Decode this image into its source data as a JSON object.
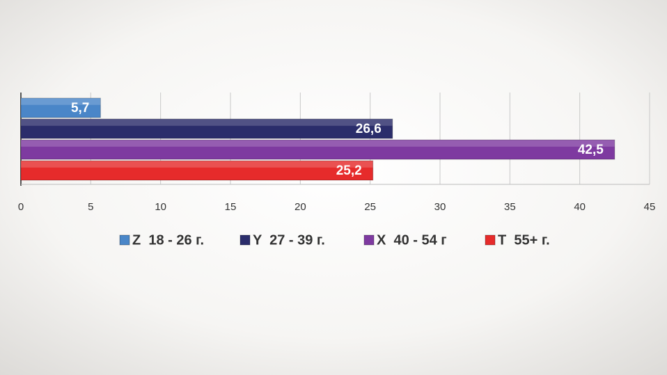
{
  "chart_data": {
    "type": "bar",
    "orientation": "horizontal",
    "categories": [
      null
    ],
    "series": [
      {
        "name": "Z  18 - 26 г.",
        "color": "#4a86c8",
        "values": [
          5.7
        ],
        "value_labels": [
          "5,7"
        ]
      },
      {
        "name": "Y  27 - 39 г.",
        "color": "#2b2d6b",
        "values": [
          26.6
        ],
        "value_labels": [
          "26,6"
        ]
      },
      {
        "name": "X  40 - 54 г",
        "color": "#7e3aa0",
        "values": [
          42.5
        ],
        "value_labels": [
          "42,5"
        ]
      },
      {
        "name": "T  55+ г.",
        "color": "#e62b2b",
        "values": [
          25.2
        ],
        "value_labels": [
          "25,2"
        ]
      }
    ],
    "xlim": [
      0,
      45
    ],
    "xticks": [
      0,
      5,
      10,
      15,
      20,
      25,
      30,
      35,
      40,
      45
    ],
    "grid": true,
    "legend": "bottom"
  }
}
